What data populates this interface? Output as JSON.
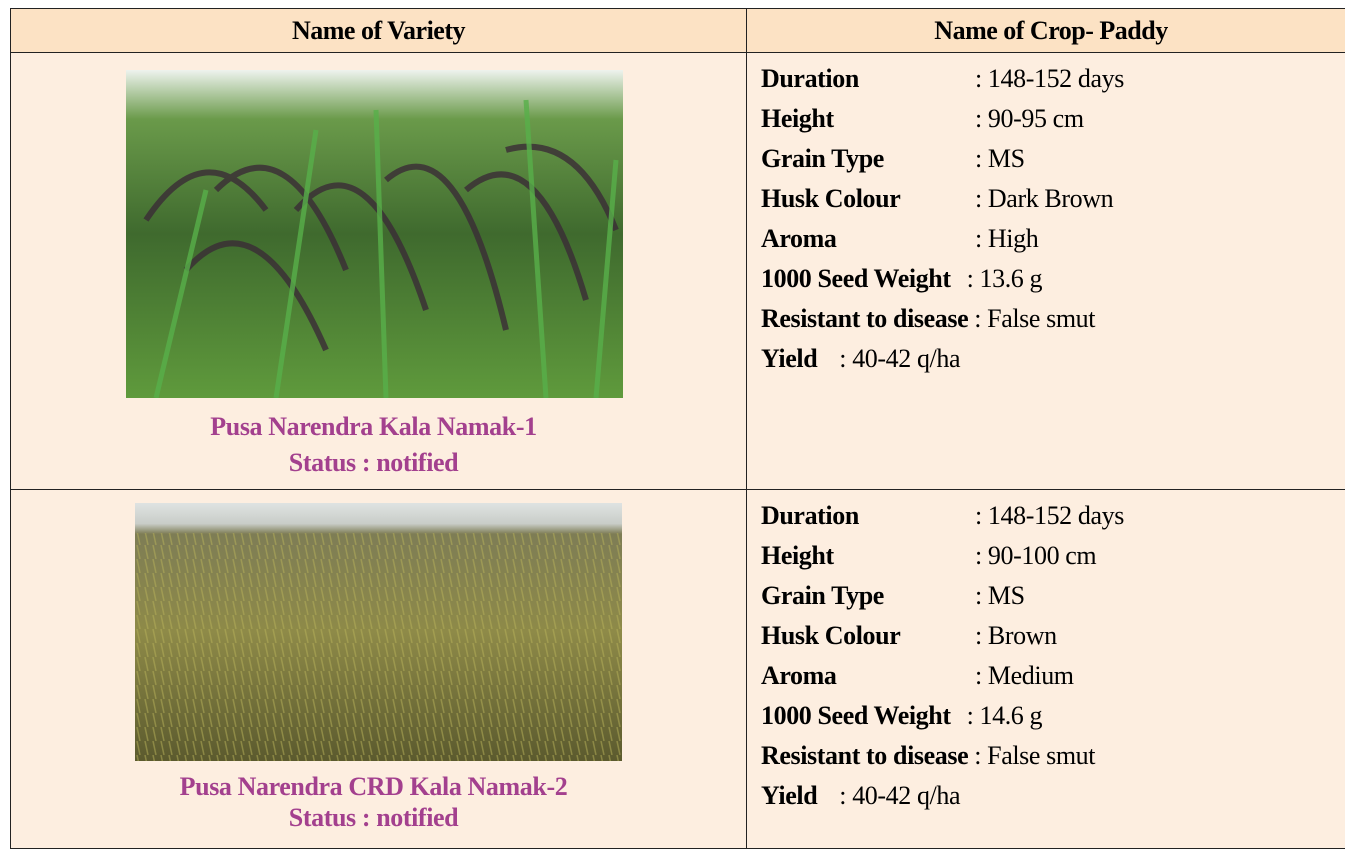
{
  "table": {
    "header": [
      "Name of Variety",
      "Name of Crop- Paddy"
    ],
    "rows": [
      {
        "variety": "Pusa Narendra Kala Namak-1",
        "status": "Status : notified",
        "traits": [
          [
            "Duration",
            ": 148-152 days"
          ],
          [
            "Height",
            ": 90-95 cm"
          ],
          [
            "Grain Type",
            ": MS"
          ],
          [
            "Husk Colour",
            ": Dark Brown"
          ],
          [
            "Aroma",
            ": High"
          ],
          [
            "1000 Seed Weight",
            ": 13.6 g"
          ],
          [
            "Resistant to disease",
            ": False smut"
          ],
          [
            "Yield",
            ": 40-42 q/ha"
          ]
        ]
      },
      {
        "variety": "Pusa Narendra CRD Kala Namak-2",
        "status": "Status : notified",
        "traits": [
          [
            "Duration",
            ": 148-152 days"
          ],
          [
            "Height",
            ": 90-100 cm"
          ],
          [
            "Grain Type",
            ": MS"
          ],
          [
            "Husk Colour",
            ": Brown"
          ],
          [
            "Aroma",
            ": Medium"
          ],
          [
            "1000 Seed Weight",
            ": 14.6 g"
          ],
          [
            "Resistant to disease",
            ": False smut"
          ],
          [
            "Yield",
            ": 40-42 q/ha"
          ]
        ]
      }
    ]
  }
}
